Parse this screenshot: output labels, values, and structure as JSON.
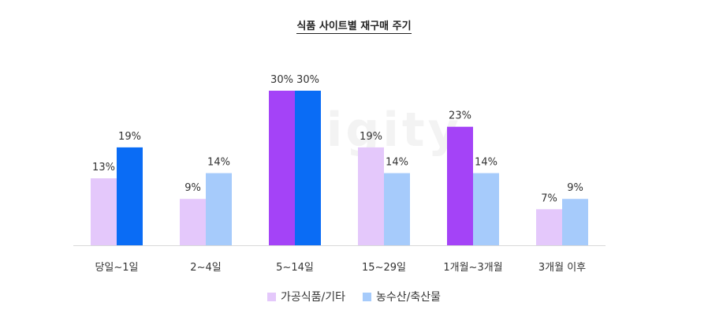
{
  "watermark": "Digity",
  "chart_data": {
    "type": "bar",
    "title": "식품 사이트별 재구매 주기",
    "categories": [
      "당일~1일",
      "2~4일",
      "5~14일",
      "15~29일",
      "1개월~3개월",
      "3개월 이후"
    ],
    "series": [
      {
        "name": "가공식품/기타",
        "values": [
          13,
          9,
          30,
          19,
          23,
          7
        ],
        "labels": [
          "13%",
          "9%",
          "30%",
          "19%",
          "23%",
          "7%"
        ],
        "colors": [
          "#e4c8fb",
          "#e4c8fb",
          "#a443f7",
          "#e4c8fb",
          "#a443f7",
          "#e4c8fb"
        ]
      },
      {
        "name": "농수산/축산물",
        "values": [
          19,
          14,
          30,
          14,
          14,
          9
        ],
        "labels": [
          "19%",
          "14%",
          "30%",
          "14%",
          "14%",
          "9%"
        ],
        "colors": [
          "#0a6cf5",
          "#a6cbfb",
          "#0a6cf5",
          "#a6cbfb",
          "#a6cbfb",
          "#a6cbfb"
        ]
      }
    ],
    "legend_colors": [
      "#e4c8fb",
      "#a6cbfb"
    ],
    "legend_position": "bottom",
    "ylim": [
      0,
      30
    ],
    "grid": false,
    "xlabel": "",
    "ylabel": ""
  }
}
